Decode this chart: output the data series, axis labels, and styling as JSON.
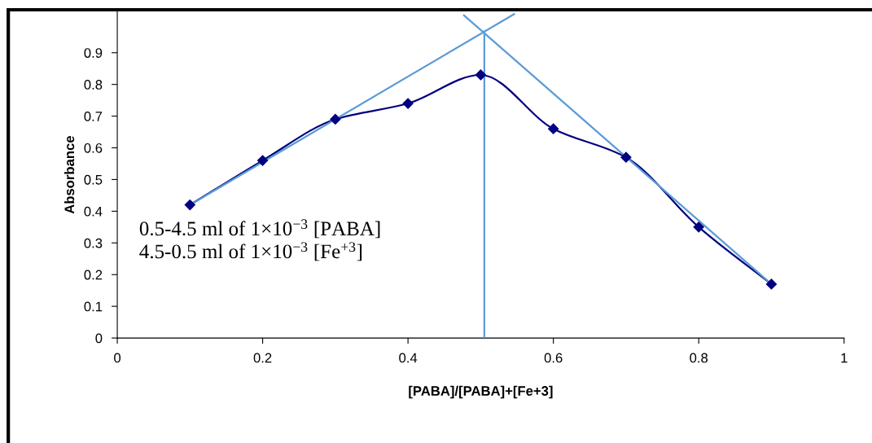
{
  "chart_data": {
    "type": "line",
    "xlabel": "[PABA]/[PABA]+[Fe+3]",
    "ylabel": "Absorbance",
    "x": [
      0.1,
      0.2,
      0.3,
      0.4,
      0.5,
      0.6,
      0.7,
      0.8,
      0.9
    ],
    "series": [
      {
        "color": "#000080",
        "values": [
          0.42,
          0.56,
          0.69,
          0.74,
          0.83,
          0.66,
          0.57,
          0.35,
          0.17
        ],
        "marker": "diamond"
      },
      {
        "color": "#5b9bd5",
        "x": [
          0.1,
          0.546
        ],
        "values": [
          0.42,
          1.022
        ],
        "marker": "none"
      },
      {
        "color": "#5b9bd5",
        "x": [
          0.477,
          0.9
        ],
        "values": [
          1.018,
          0.17
        ],
        "marker": "none"
      },
      {
        "color": "#5b9bd5",
        "x": [
          0.505,
          0.505
        ],
        "values": [
          0,
          0.967
        ],
        "marker": "none"
      }
    ],
    "xlim": [
      0,
      1
    ],
    "xticks": [
      0,
      0.2,
      0.4,
      0.6,
      0.8,
      1
    ],
    "ylim": [
      0,
      1.03
    ],
    "yticks": [
      0,
      0.1,
      0.2,
      0.3,
      0.4,
      0.5,
      0.6,
      0.7,
      0.8,
      0.9
    ],
    "grid": false,
    "legend": false,
    "annotations": [
      "0.5-4.5 ml of 1×10$^{−3}$ [PABA]",
      "4.5-0.5 ml of 1×10$^{−3}$ [Fe$^{+3}$]"
    ]
  }
}
